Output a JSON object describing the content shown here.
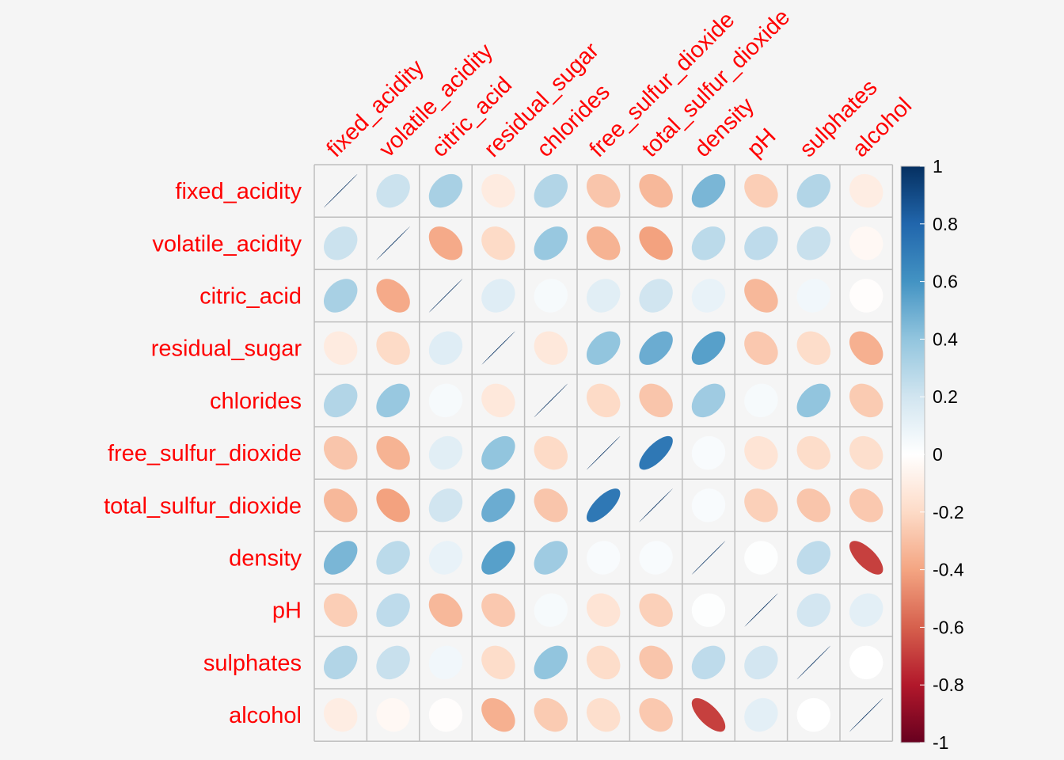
{
  "chart_data": {
    "type": "heatmap",
    "variables": [
      "fixed_acidity",
      "volatile_acidity",
      "citric_acid",
      "residual_sugar",
      "chlorides",
      "free_sulfur_dioxide",
      "total_sulfur_dioxide",
      "density",
      "pH",
      "sulphates",
      "alcohol"
    ],
    "matrix": [
      [
        1.0,
        0.22,
        0.33,
        -0.11,
        0.3,
        -0.28,
        -0.33,
        0.46,
        -0.25,
        0.3,
        -0.1
      ],
      [
        0.22,
        1.0,
        -0.38,
        -0.2,
        0.38,
        -0.35,
        -0.41,
        0.27,
        0.26,
        0.23,
        -0.04
      ],
      [
        0.33,
        -0.38,
        1.0,
        0.14,
        0.04,
        0.13,
        0.2,
        0.1,
        -0.33,
        0.06,
        -0.01
      ],
      [
        -0.11,
        -0.2,
        0.14,
        1.0,
        -0.13,
        0.4,
        0.5,
        0.55,
        -0.27,
        -0.19,
        -0.36
      ],
      [
        0.3,
        0.38,
        0.04,
        -0.13,
        1.0,
        -0.2,
        -0.28,
        0.36,
        0.04,
        0.4,
        -0.26
      ],
      [
        -0.28,
        -0.35,
        0.13,
        0.4,
        -0.2,
        1.0,
        0.72,
        0.03,
        -0.15,
        -0.19,
        -0.18
      ],
      [
        -0.33,
        -0.41,
        0.2,
        0.5,
        -0.28,
        0.72,
        1.0,
        0.03,
        -0.24,
        -0.28,
        -0.27
      ],
      [
        0.46,
        0.27,
        0.1,
        0.55,
        0.36,
        0.03,
        0.03,
        1.0,
        0.01,
        0.26,
        -0.69
      ],
      [
        -0.25,
        0.26,
        -0.33,
        -0.27,
        0.04,
        -0.15,
        -0.24,
        0.01,
        1.0,
        0.19,
        0.12
      ],
      [
        0.3,
        0.23,
        0.06,
        -0.19,
        0.4,
        -0.19,
        -0.28,
        0.26,
        0.19,
        1.0,
        -0.0
      ],
      [
        -0.1,
        -0.04,
        -0.01,
        -0.36,
        -0.26,
        -0.18,
        -0.27,
        -0.69,
        0.12,
        -0.0,
        1.0
      ]
    ],
    "colorbar": {
      "ticks": [
        "1",
        "0.8",
        "0.6",
        "0.4",
        "0.2",
        "0",
        "-0.2",
        "-0.4",
        "-0.6",
        "-0.8",
        "-1"
      ],
      "range": [
        -1,
        1
      ]
    },
    "palette": {
      "negative": "#67001f",
      "neutral": "#ffffff",
      "positive": "#053061",
      "label_color": "#ff0000",
      "grid_color": "#bebebe"
    },
    "shape": "ellipse",
    "layout": "full",
    "legend_position": "right"
  }
}
